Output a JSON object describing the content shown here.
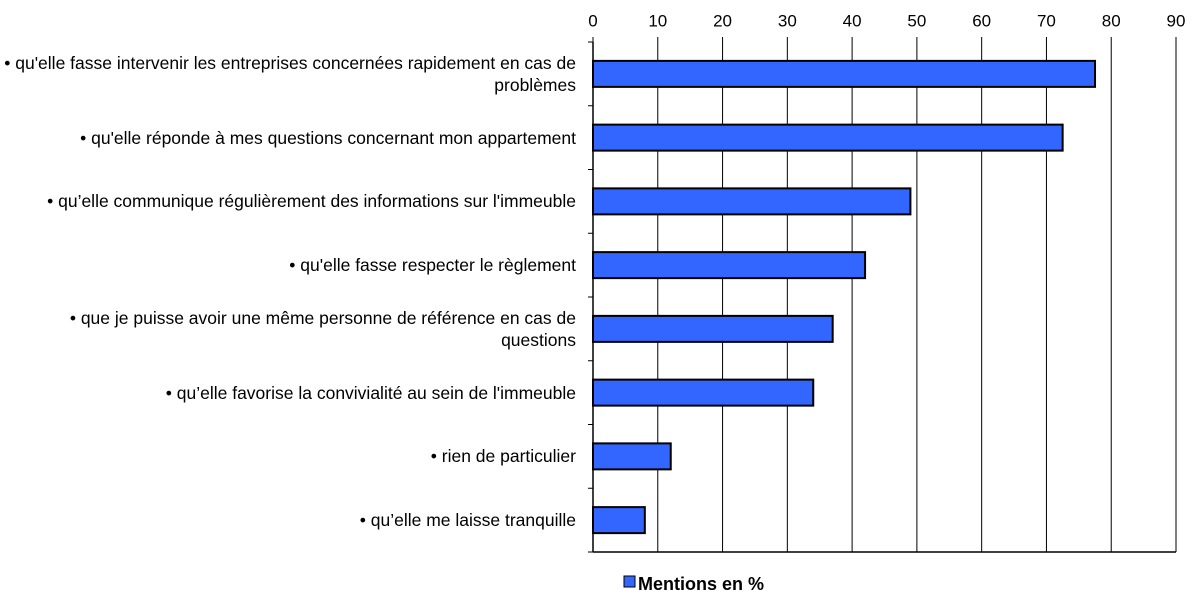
{
  "chart_data": {
    "type": "bar",
    "orientation": "horizontal",
    "categories": [
      "• qu'elle fasse intervenir les entreprises concernées rapidement en cas de problèmes",
      "• qu'elle réponde à mes questions concernant mon appartement",
      "• qu’elle communique régulièrement des informations sur l'immeuble",
      "• qu'elle fasse respecter le règlement",
      "• que je puisse avoir une même personne de référence en cas de questions",
      "• qu’elle favorise la convivialité au sein de l'immeuble",
      "• rien de particulier",
      "• qu’elle me laisse tranquille"
    ],
    "series": [
      {
        "name": "Mentions en %",
        "color": "#3366ff",
        "values": [
          77.5,
          72.5,
          49,
          42,
          37,
          34,
          12,
          8
        ]
      }
    ],
    "xlim": [
      0,
      90
    ],
    "xticks": [
      0,
      10,
      20,
      30,
      40,
      50,
      60,
      70,
      80,
      90
    ],
    "grid": true,
    "legend": "bottom"
  }
}
